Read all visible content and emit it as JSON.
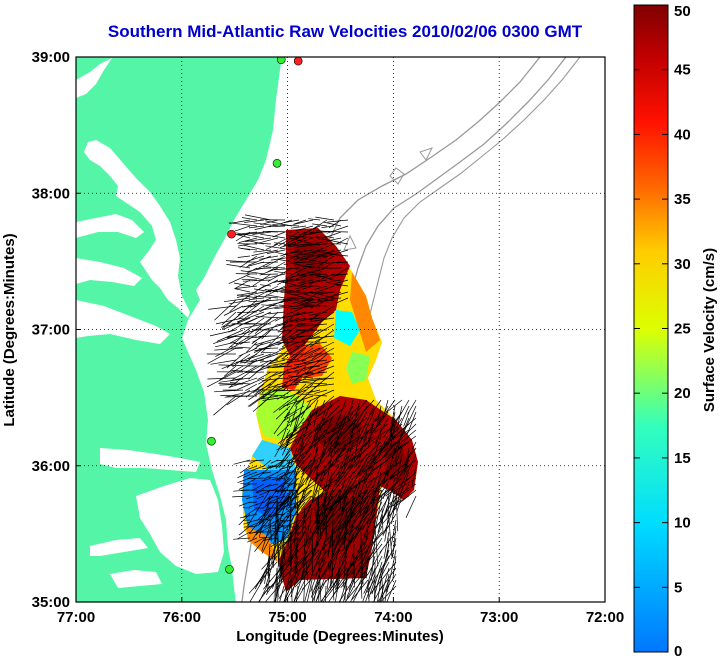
{
  "title": "Southern Mid-Atlantic Raw Velocities 2010/02/06 0300 GMT",
  "map": {
    "xlabel": "Longitude (Degrees:Minutes)",
    "ylabel": "Latitude (Degrees:Minutes)",
    "x_ticks": [
      {
        "value": -77,
        "label": "77:00"
      },
      {
        "value": -76,
        "label": "76:00"
      },
      {
        "value": -75,
        "label": "75:00"
      },
      {
        "value": -74,
        "label": "74:00"
      },
      {
        "value": -73,
        "label": "73:00"
      },
      {
        "value": -72,
        "label": "72:00"
      }
    ],
    "y_ticks": [
      {
        "value": 39,
        "label": "39:00"
      },
      {
        "value": 38,
        "label": "38:00"
      },
      {
        "value": 37,
        "label": "37:00"
      },
      {
        "value": 36,
        "label": "36:00"
      },
      {
        "value": 35,
        "label": "35:00"
      }
    ],
    "xlim": [
      -77,
      -72
    ],
    "ylim": [
      35,
      39
    ],
    "grid": true,
    "land_color": "#55f5a8",
    "water_color": "#ffffff",
    "bathymetry_color": "#999999",
    "vector_color": "#000000",
    "stations": [
      {
        "lon": -74.9,
        "lat": 38.97,
        "color": "#ff2020"
      },
      {
        "lon": -75.06,
        "lat": 38.98,
        "color": "#33ee33"
      },
      {
        "lon": -75.1,
        "lat": 38.22,
        "color": "#33ee33"
      },
      {
        "lon": -75.53,
        "lat": 37.7,
        "color": "#ff2020"
      },
      {
        "lon": -75.72,
        "lat": 36.18,
        "color": "#33ee33"
      },
      {
        "lon": -75.55,
        "lat": 35.24,
        "color": "#33ee33"
      }
    ]
  },
  "colorbar": {
    "label": "Surface Velocity (cm/s)",
    "min": 0,
    "max": 50,
    "ticks": [
      0,
      5,
      10,
      15,
      20,
      25,
      30,
      35,
      40,
      45,
      50
    ],
    "tick_labels": [
      "0",
      "5",
      "10",
      "15",
      "20",
      "25",
      "30",
      "35",
      "40",
      "45",
      "50"
    ],
    "colormap": "jet"
  }
}
